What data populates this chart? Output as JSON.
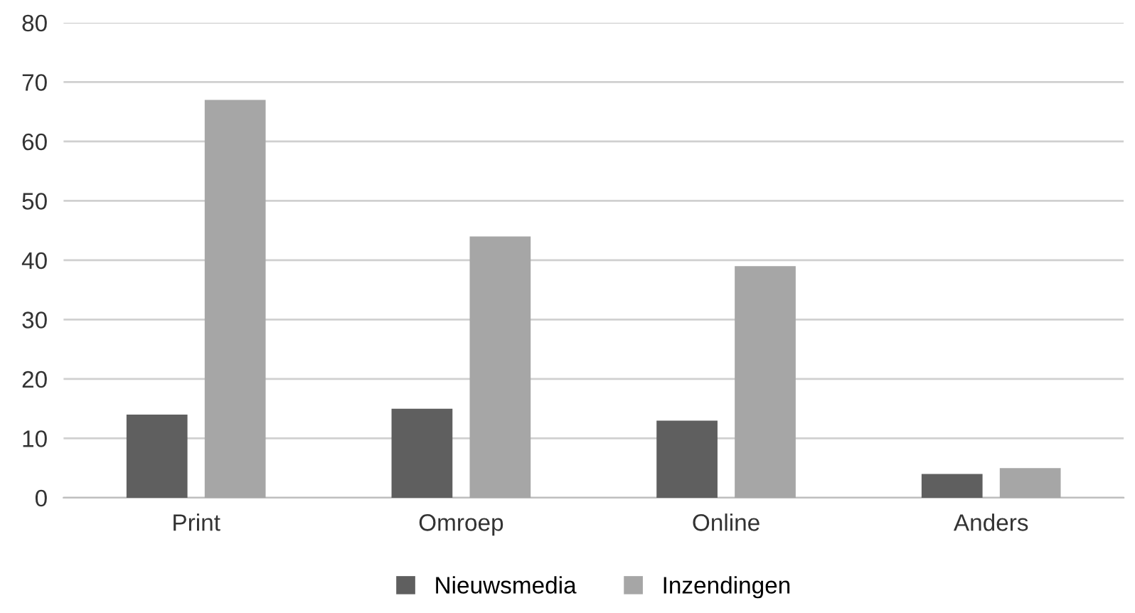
{
  "chart_data": {
    "type": "bar",
    "categories": [
      "Print",
      "Omroep",
      "Online",
      "Anders"
    ],
    "series": [
      {
        "name": "Nieuwsmedia",
        "color": "#5f5f5f",
        "values": [
          14,
          15,
          13,
          4
        ]
      },
      {
        "name": "Inzendingen",
        "color": "#a6a6a6",
        "values": [
          67,
          44,
          39,
          5
        ]
      }
    ],
    "ylim": [
      0,
      80
    ],
    "yticks": [
      0,
      10,
      20,
      30,
      40,
      50,
      60,
      70,
      80
    ],
    "grid": "y",
    "legend": "bottom"
  }
}
